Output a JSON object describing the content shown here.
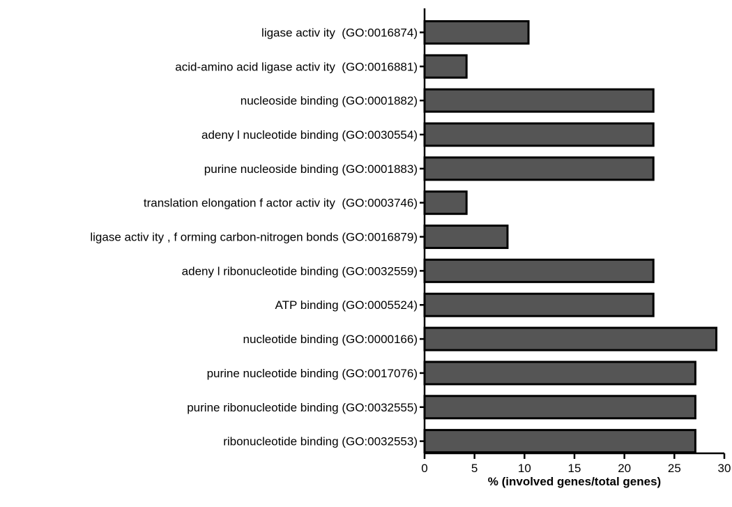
{
  "chart_data": {
    "type": "bar",
    "orientation": "horizontal",
    "categories": [
      "ligase activ ity  (GO:0016874)",
      "acid-amino acid ligase activ ity  (GO:0016881)",
      "nucleoside binding (GO:0001882)",
      "adeny l nucleotide binding (GO:0030554)",
      "purine nucleoside binding (GO:0001883)",
      "translation elongation f actor activ ity  (GO:0003746)",
      "ligase activ ity , f orming carbon-nitrogen bonds (GO:0016879)",
      "adeny l ribonucleotide binding (GO:0032559)",
      "ATP binding (GO:0005524)",
      "nucleotide binding (GO:0000166)",
      "purine nucleotide binding (GO:0017076)",
      "purine ribonucleotide binding (GO:0032555)",
      "ribonucleotide binding (GO:0032553)"
    ],
    "values": [
      10.4,
      4.2,
      22.9,
      22.9,
      22.9,
      4.2,
      8.3,
      22.9,
      22.9,
      29.2,
      27.1,
      27.1,
      27.1
    ],
    "xlim": [
      0,
      30
    ],
    "xticks": [
      0,
      5,
      10,
      15,
      20,
      25,
      30
    ],
    "xlabel": "% (involved genes/total genes)",
    "grid": false,
    "bar_color": "#555555",
    "bar_outline": "#000000"
  }
}
